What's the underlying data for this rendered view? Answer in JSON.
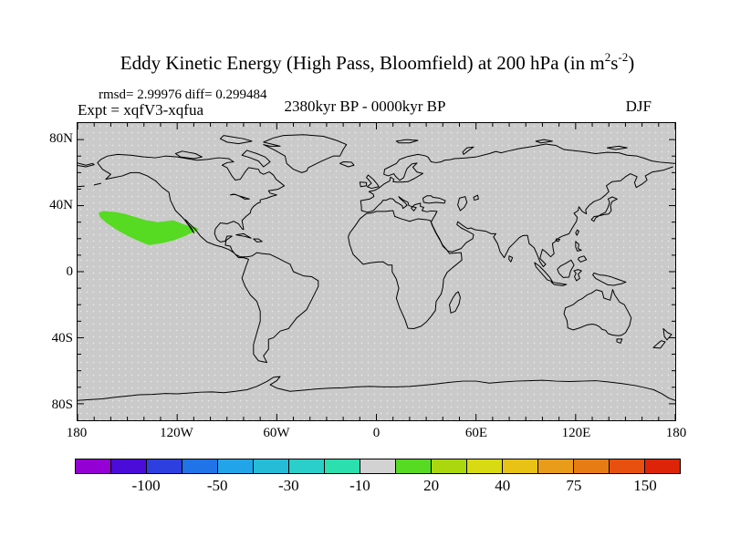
{
  "figure": {
    "title": {
      "main": "Eddy Kinetic Energy (High Pass, Bloomfield) at 200 hPa (in m",
      "sup1": "2",
      "unit_mid": "s",
      "sup2": "-2",
      "close": ")"
    },
    "stats_line": "rmsd= 2.99976 diff= 0.299484",
    "expt_line": "Expt = xqfV3-xqfua",
    "period_line": "2380kyr BP - 0000kyr BP",
    "season_label": "DJF"
  },
  "map": {
    "background_color": "#cacaca",
    "coastline_color": "#000000",
    "x_axis": {
      "labels": [
        "180",
        "120W",
        "60W",
        "0",
        "60E",
        "120E",
        "180"
      ],
      "lons": [
        -180,
        -120,
        -60,
        0,
        60,
        120,
        180
      ]
    },
    "y_axis": {
      "labels": [
        "80N",
        "40N",
        "0",
        "40S",
        "80S"
      ],
      "lats": [
        80,
        40,
        0,
        -40,
        -80
      ]
    }
  },
  "colorbar": {
    "segment_colors": [
      "#9400d3",
      "#4b0bd8",
      "#2e3fe0",
      "#2173e8",
      "#22a5e8",
      "#25bcd8",
      "#29cfc8",
      "#2bdfae",
      "#d2d2d2",
      "#56da22",
      "#abd70f",
      "#d8da12",
      "#e8c214",
      "#e89c1a",
      "#e87c14",
      "#e8500f",
      "#dd2408"
    ],
    "tick_labels": [
      "-100",
      "-50",
      "-30",
      "-10",
      "20",
      "40",
      "75",
      "150"
    ],
    "tick_boundary_indices": [
      2,
      4,
      6,
      8,
      10,
      12,
      14,
      16
    ]
  },
  "chart_data": {
    "type": "heatmap",
    "projection": "equirectangular world map",
    "title": "Eddy Kinetic Energy (High Pass, Bloomfield) at 200 hPa (in m2 s-2)",
    "experiment": "xqfV3-xqfua",
    "period": "2380kyr BP - 0000kyr BP",
    "season": "DJF",
    "rmsd": 2.99976,
    "diff": 0.299484,
    "lon_range": [
      -180,
      180
    ],
    "lat_range": [
      -90,
      90
    ],
    "lon_tick_labels": [
      "180",
      "120W",
      "60W",
      "0",
      "60E",
      "120E",
      "180"
    ],
    "lat_tick_labels": [
      "80N",
      "40N",
      "0",
      "40S",
      "80S"
    ],
    "contour_levels": [
      -150,
      -100,
      -75,
      -50,
      -40,
      -30,
      -20,
      -10,
      10,
      20,
      30,
      40,
      50,
      75,
      100,
      150
    ],
    "colorbar_labeled_levels": [
      -100,
      -50,
      -30,
      -10,
      20,
      40,
      75,
      150
    ],
    "anomaly_regions": [
      {
        "description": "Positive EKE difference (10 to 20 m2 s-2) over the subtropical Northeast Pacific, west of Baja California / Mexico",
        "value_range": [
          10,
          20
        ],
        "color": "#56da22",
        "polygon_lonlat": [
          [
            -167.4,
            35.6
          ],
          [
            -164.6,
            36.7
          ],
          [
            -156.9,
            36.1
          ],
          [
            -151.4,
            35.0
          ],
          [
            -145.9,
            33.3
          ],
          [
            -138.8,
            31.1
          ],
          [
            -131.6,
            30.0
          ],
          [
            -122.3,
            31.1
          ],
          [
            -115.1,
            28.3
          ],
          [
            -109.6,
            27.2
          ],
          [
            -106.9,
            25.6
          ],
          [
            -115.1,
            21.7
          ],
          [
            -122.3,
            18.9
          ],
          [
            -129.4,
            17.2
          ],
          [
            -137.1,
            16.1
          ],
          [
            -142.6,
            18.3
          ],
          [
            -149.8,
            21.7
          ],
          [
            -156.9,
            25.6
          ],
          [
            -162.4,
            29.4
          ],
          [
            -166.3,
            32.8
          ]
        ]
      }
    ]
  }
}
